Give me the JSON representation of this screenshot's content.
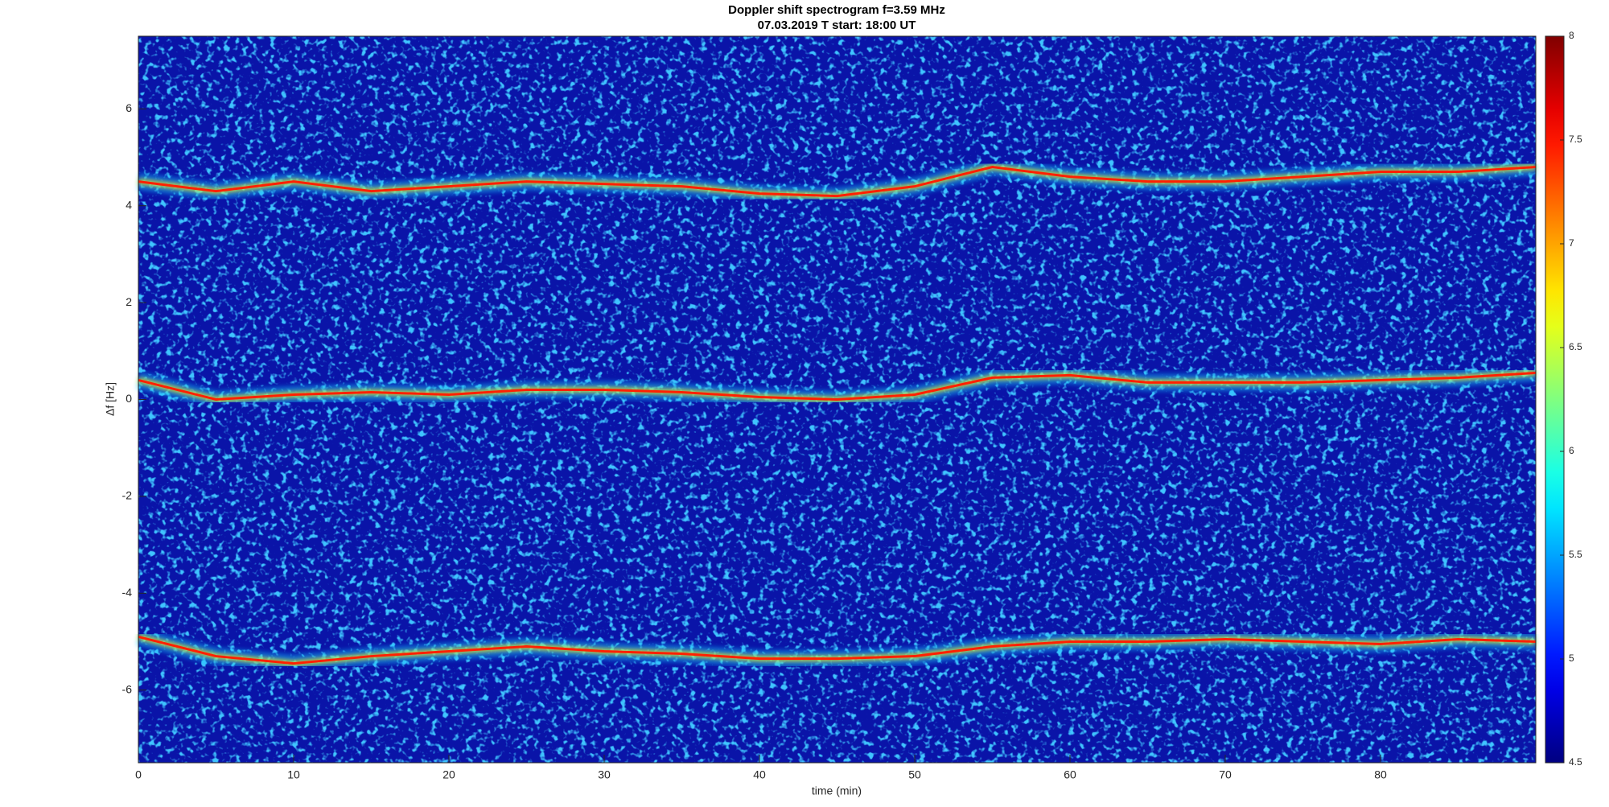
{
  "chart_data": {
    "type": "spectrogram",
    "title": "Doppler shift spectrogram f=3.59 MHz",
    "subtitle": "07.03.2019   T start: 18:00 UT",
    "x_label": "time (min)",
    "y_label": "Δf [Hz]",
    "xlim": [
      0,
      90
    ],
    "xticks": [
      0,
      10,
      20,
      30,
      40,
      50,
      60,
      70,
      80
    ],
    "ylim": [
      -7.5,
      7.5
    ],
    "yticks": [
      -6,
      -4,
      -2,
      0,
      2,
      4,
      6
    ],
    "colormap": "jet",
    "clim": [
      4.5,
      8
    ],
    "cticks": [
      4.5,
      5,
      5.5,
      6,
      6.5,
      7,
      7.5,
      8
    ],
    "x": [
      0,
      5,
      10,
      15,
      20,
      25,
      30,
      35,
      40,
      45,
      50,
      55,
      60,
      65,
      70,
      75,
      80,
      85,
      90
    ],
    "series": [
      {
        "color": "#ff2000",
        "values": [
          4.5,
          4.3,
          4.5,
          4.3,
          4.4,
          4.5,
          4.45,
          4.4,
          4.25,
          4.2,
          4.4,
          4.8,
          4.6,
          4.5,
          4.5,
          4.6,
          4.7,
          4.7,
          4.8
        ]
      },
      {
        "color": "#ff2000",
        "values": [
          0.4,
          0.0,
          0.1,
          0.15,
          0.1,
          0.2,
          0.2,
          0.15,
          0.05,
          0.0,
          0.1,
          0.45,
          0.5,
          0.35,
          0.35,
          0.35,
          0.4,
          0.45,
          0.55
        ]
      },
      {
        "color": "#ff2000",
        "values": [
          -4.9,
          -5.3,
          -5.45,
          -5.3,
          -5.2,
          -5.1,
          -5.2,
          -5.25,
          -5.35,
          -5.35,
          -5.3,
          -5.1,
          -5.0,
          -5.0,
          -4.95,
          -5.0,
          -5.05,
          -4.95,
          -5.0
        ]
      }
    ]
  }
}
